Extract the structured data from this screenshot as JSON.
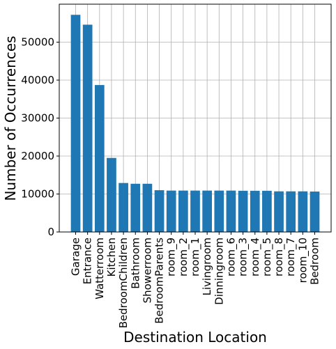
{
  "chart_data": {
    "type": "bar",
    "title": "",
    "xlabel": "Destination Location",
    "ylabel": "Number of Occurrences",
    "categories": [
      "Garage",
      "Entrance",
      "Watterroom",
      "Kitchen",
      "BedroomChildren",
      "Bathroom",
      "Showerroom",
      "BedroomParents",
      "room_9",
      "room_2",
      "room_1",
      "Livingroom",
      "Dinningroom",
      "room_6",
      "room_3",
      "room_4",
      "room_5",
      "room_8",
      "room_7",
      "room_10",
      "Bedroom"
    ],
    "values": [
      57200,
      54600,
      38700,
      19500,
      12900,
      12700,
      12700,
      11000,
      10900,
      10900,
      10900,
      10900,
      10900,
      10900,
      10850,
      10850,
      10850,
      10700,
      10700,
      10700,
      10650
    ],
    "ylim": [
      0,
      60000
    ],
    "yticks": [
      0,
      10000,
      20000,
      30000,
      40000,
      50000
    ],
    "ytick_labels": [
      "0",
      "10000",
      "20000",
      "30000",
      "40000",
      "50000"
    ],
    "grid": true,
    "bar_color": "#1f77b4",
    "grid_color": "#b0b0b0"
  }
}
